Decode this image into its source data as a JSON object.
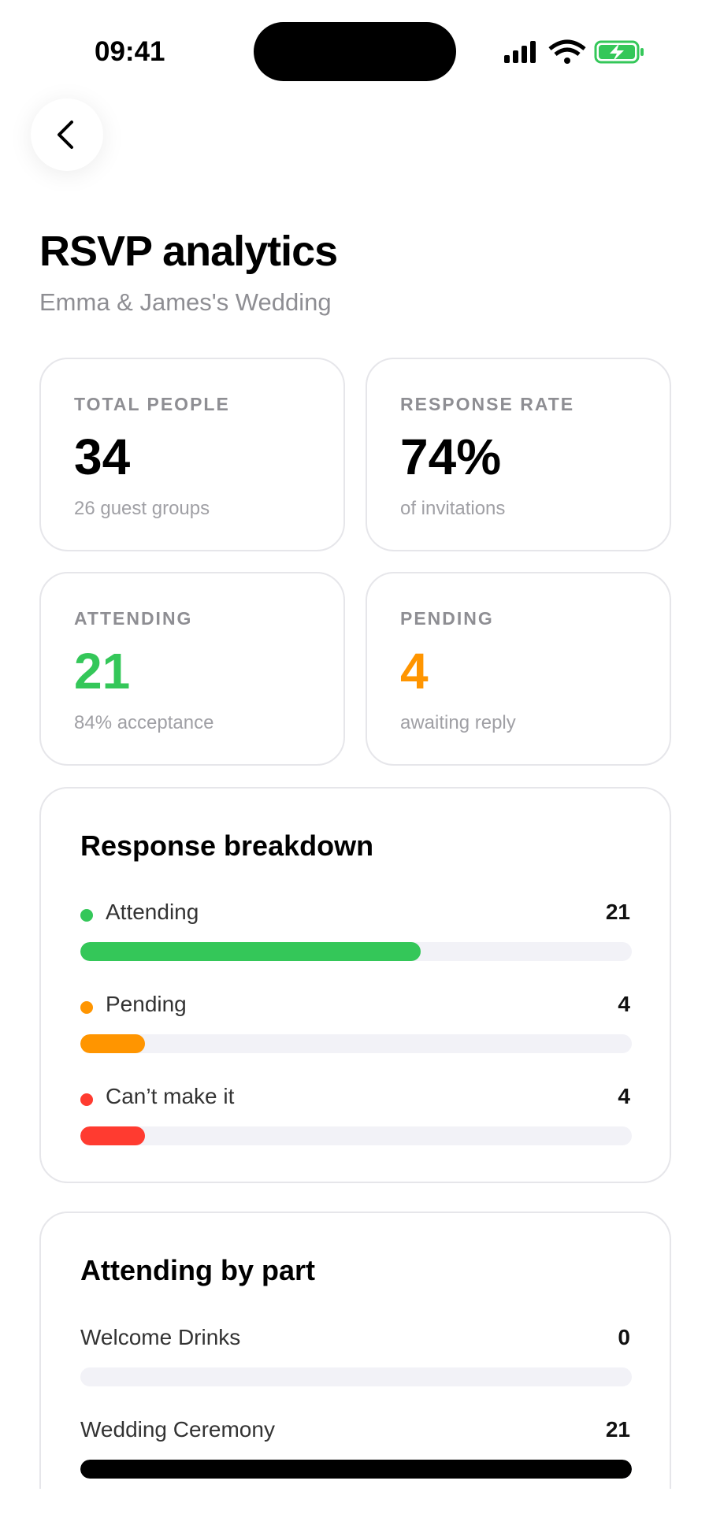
{
  "status_bar": {
    "time": "09:41"
  },
  "header": {
    "title": "RSVP analytics",
    "subtitle": "Emma & James's Wedding"
  },
  "stats": [
    {
      "label": "TOTAL PEOPLE",
      "value": 34,
      "note": "26 guest groups",
      "color": "#000000"
    },
    {
      "label": "RESPONSE RATE",
      "value": "74%",
      "note": "of invitations",
      "color": "#000000"
    },
    {
      "label": "ATTENDING",
      "value": 21,
      "note": "84% acceptance",
      "color": "#34c759"
    },
    {
      "label": "PENDING",
      "value": 4,
      "note": "awaiting reply",
      "color": "#ff9500"
    }
  ],
  "breakdown": {
    "title": "Response breakdown",
    "items": [
      {
        "label": "Attending",
        "value": 21,
        "color": "#34c759"
      },
      {
        "label": "Pending",
        "value": 4,
        "color": "#ff9500"
      },
      {
        "label": "Can’t make it",
        "value": 4,
        "color": "#ff3b30"
      }
    ]
  },
  "parts": {
    "title": "Attending by part",
    "color": "#000000",
    "items": [
      {
        "label": "Welcome Drinks",
        "value": 0
      },
      {
        "label": "Wedding Ceremony",
        "value": 21
      }
    ]
  }
}
